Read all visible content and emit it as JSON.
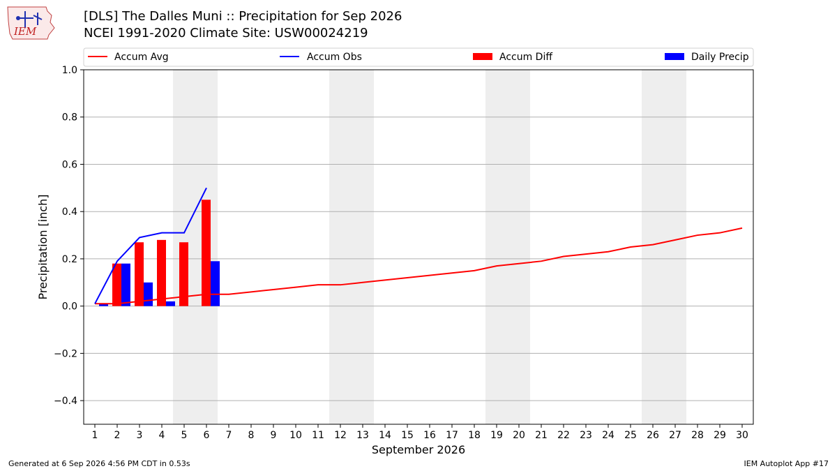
{
  "header": {
    "title_line1": "[DLS] The Dalles Muni :: Precipitation for Sep 2026",
    "title_line2": "NCEI 1991-2020 Climate Site: USW00024219",
    "logo_text": "IEM"
  },
  "footer": {
    "generated": "Generated at 6 Sep 2026 4:56 PM CDT in 0.53s",
    "app": "IEM Autoplot App #17"
  },
  "colors": {
    "accum_avg": "#ff0000",
    "accum_obs": "#0000ff",
    "accum_diff": "#ff0000",
    "daily_precip": "#0000ff",
    "weekend_shade": "#eeeeee",
    "grid": "#b0b0b0"
  },
  "chart_data": {
    "type": "bar",
    "xlabel": "September 2026",
    "ylabel": "Precipitation [inch]",
    "ylim": [
      -0.5,
      1.0
    ],
    "yticks": [
      1.0,
      0.8,
      0.6,
      0.4,
      0.2,
      0.0,
      -0.2,
      -0.4
    ],
    "ytick_labels": [
      "1.0",
      "0.8",
      "0.6",
      "0.4",
      "0.2",
      "0.0",
      "−0.2",
      "−0.4"
    ],
    "x": [
      1,
      2,
      3,
      4,
      5,
      6,
      7,
      8,
      9,
      10,
      11,
      12,
      13,
      14,
      15,
      16,
      17,
      18,
      19,
      20,
      21,
      22,
      23,
      24,
      25,
      26,
      27,
      28,
      29,
      30
    ],
    "grid": "horizontal",
    "legend_position": "top",
    "legend": [
      "Accum Avg",
      "Accum Obs",
      "Accum Diff",
      "Daily Precip"
    ],
    "weekend_days": [
      5,
      6,
      12,
      13,
      19,
      20,
      26,
      27
    ],
    "series": [
      {
        "name": "Accum Avg",
        "kind": "line",
        "x": [
          1,
          2,
          3,
          4,
          5,
          6,
          7,
          8,
          9,
          10,
          11,
          12,
          13,
          14,
          15,
          16,
          17,
          18,
          19,
          20,
          21,
          22,
          23,
          24,
          25,
          26,
          27,
          28,
          29,
          30
        ],
        "values": [
          0.01,
          0.01,
          0.02,
          0.03,
          0.04,
          0.05,
          0.05,
          0.06,
          0.07,
          0.08,
          0.09,
          0.09,
          0.1,
          0.11,
          0.12,
          0.13,
          0.14,
          0.15,
          0.17,
          0.18,
          0.19,
          0.21,
          0.22,
          0.23,
          0.25,
          0.26,
          0.28,
          0.3,
          0.31,
          0.33
        ]
      },
      {
        "name": "Accum Obs",
        "kind": "line",
        "x": [
          1,
          2,
          3,
          4,
          5,
          6
        ],
        "values": [
          0.01,
          0.19,
          0.29,
          0.31,
          0.31,
          0.5
        ]
      },
      {
        "name": "Accum Diff",
        "kind": "bar",
        "x": [
          1,
          2,
          3,
          4,
          5,
          6
        ],
        "values": [
          0.0,
          0.18,
          0.27,
          0.28,
          0.27,
          0.45
        ]
      },
      {
        "name": "Daily Precip",
        "kind": "bar",
        "x": [
          1,
          2,
          3,
          4,
          5,
          6
        ],
        "values": [
          0.01,
          0.18,
          0.1,
          0.02,
          0.0,
          0.19
        ]
      }
    ]
  }
}
